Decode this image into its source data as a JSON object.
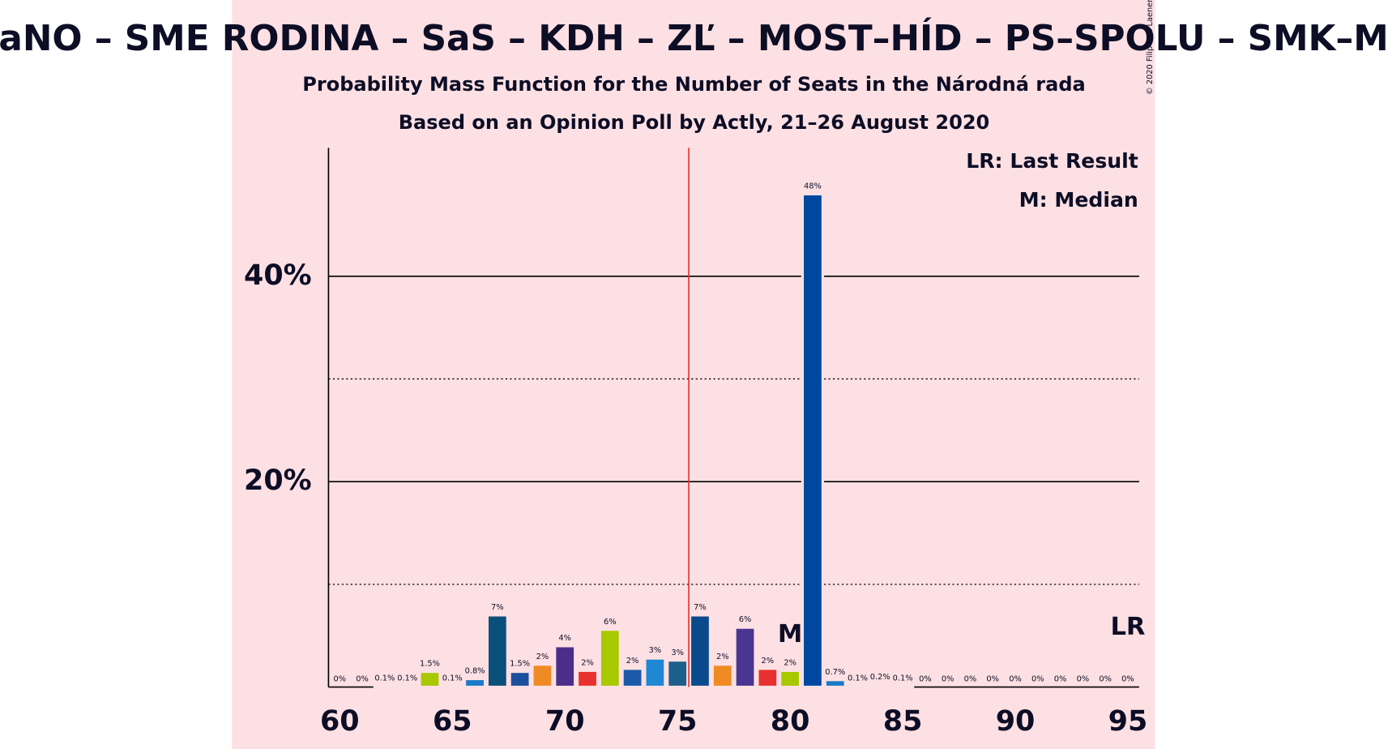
{
  "chart_data": {
    "type": "bar",
    "title": "OĽaNO – SME RODINA – SaS – KDH – ZĽ – MOST–HÍD – PS–SPOLU – SMK–MKP",
    "subtitle": "Probability Mass Function for the Number of Seats in the Národná rada",
    "subtitle2": "Based on an Opinion Poll by Actly, 21–26 August 2020",
    "copyright": "© 2020 Filip van Laenen",
    "legend_lr": "LR: Last Result",
    "legend_median": "M: Median",
    "median_label": "M",
    "last_result_label": "LR",
    "median": 80,
    "last_result": 95,
    "majority_line": 75.5,
    "x": [
      60,
      61,
      62,
      63,
      64,
      65,
      66,
      67,
      68,
      69,
      70,
      71,
      72,
      73,
      74,
      75,
      76,
      77,
      78,
      79,
      80,
      81,
      82,
      83,
      84,
      85,
      86,
      87,
      88,
      89,
      90,
      91,
      92,
      93,
      94,
      95
    ],
    "values": [
      0,
      0,
      0.1,
      0.1,
      1.5,
      0.1,
      0.8,
      7,
      1.5,
      2.2,
      4,
      1.6,
      5.6,
      1.8,
      2.8,
      2.6,
      7,
      2.2,
      5.8,
      1.8,
      1.6,
      48,
      0.7,
      0.1,
      0.2,
      0.1,
      0,
      0,
      0,
      0,
      0,
      0,
      0,
      0,
      0,
      0
    ],
    "value_labels": [
      "0%",
      "0%",
      "0.1%",
      "0.1%",
      "1.5%",
      "0.1%",
      "0.8%",
      "7%",
      "1.5%",
      "2%",
      "4%",
      "2%",
      "6%",
      "2%",
      "3%",
      "3%",
      "7%",
      "2%",
      "6%",
      "2%",
      "2%",
      "48%",
      "0.7%",
      "0.1%",
      "0.2%",
      "0.1%",
      "0%",
      "0%",
      "0%",
      "0%",
      "0%",
      "0%",
      "0%",
      "0%",
      "0%",
      "0%"
    ],
    "colors": [
      "#0047a0",
      "#1a7ac8",
      "#0047a0",
      "#1d5f8c",
      "#a8c800",
      "#1a7ac8",
      "#1a7ac8",
      "#0a4f7a",
      "#1b4f9c",
      "#f08a24",
      "#4b2e8a",
      "#e8312e",
      "#a8c800",
      "#1b5aa8",
      "#1e88d4",
      "#1d5f8c",
      "#0a4a8c",
      "#f08a24",
      "#4a3592",
      "#e8312e",
      "#a8c800",
      "#0047a0",
      "#1a7ac8",
      "#0047a0",
      "#1d5f8c",
      "#0a4a8c",
      "#0047a0",
      "#0047a0",
      "#0047a0",
      "#0047a0",
      "#0047a0",
      "#0047a0",
      "#0047a0",
      "#0047a0",
      "#0047a0",
      "#0047a0"
    ],
    "xlim": [
      59.5,
      95.5
    ],
    "xticks": [
      60,
      65,
      70,
      75,
      80,
      85,
      90,
      95
    ],
    "ylim": [
      0,
      52.5
    ],
    "yticks": [
      {
        "value": 20,
        "label": "20%"
      },
      {
        "value": 40,
        "label": "40%"
      }
    ],
    "minor_yticks": [
      10,
      30
    ],
    "grid": true
  }
}
